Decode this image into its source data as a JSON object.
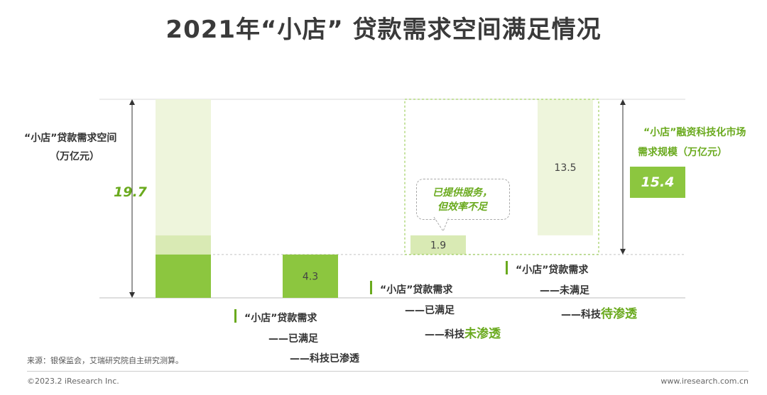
{
  "title": "2021年“小店” 贷款需求空间满足情况",
  "demand": {
    "label_line1": "“小店”贷款需求空间",
    "label_line2": "（万亿元）",
    "value": "19.7"
  },
  "market": {
    "label_line1": "“小店”融资科技化市场",
    "label_line2": "需求规模（万亿元）",
    "value": "15.4"
  },
  "bubble": {
    "line1": "已提供服务，",
    "line2": "但效率不足"
  },
  "legend": {
    "satisfied_penetrated": {
      "line1": "“小店”贷款需求",
      "line2": "——已满足",
      "line3": "——科技已渗透"
    },
    "satisfied_not_penetrated": {
      "line1": "“小店”贷款需求",
      "line2": "——已满足",
      "line3_prefix": "——科技",
      "line3_highlight": "未渗透"
    },
    "unsatisfied": {
      "line1": "“小店”贷款需求",
      "line2": "——未满足",
      "line3_prefix": "——科技",
      "line3_highlight": "待渗透"
    }
  },
  "footer": {
    "source": "来源：银保监会，艾瑞研究院自主研究测算。",
    "copyright": "©2023.2 iResearch Inc.",
    "website": "www.iresearch.com.cn"
  },
  "colors": {
    "dark_green": "#8cc63f",
    "light_green": "#eef5dc",
    "mid_green": "#d9eab4",
    "accent": "#6aaa1e"
  },
  "chart_data": {
    "type": "bar",
    "subtype": "waterfall",
    "total": 19.7,
    "categories": [
      "科技已渗透（已满足）",
      "科技未渗透（已满足）",
      "科技待渗透（未满足）"
    ],
    "values": [
      4.3,
      1.9,
      13.5
    ],
    "value_labels": [
      "4.3",
      "1.9",
      "13.5"
    ],
    "market_size": 15.4
  }
}
